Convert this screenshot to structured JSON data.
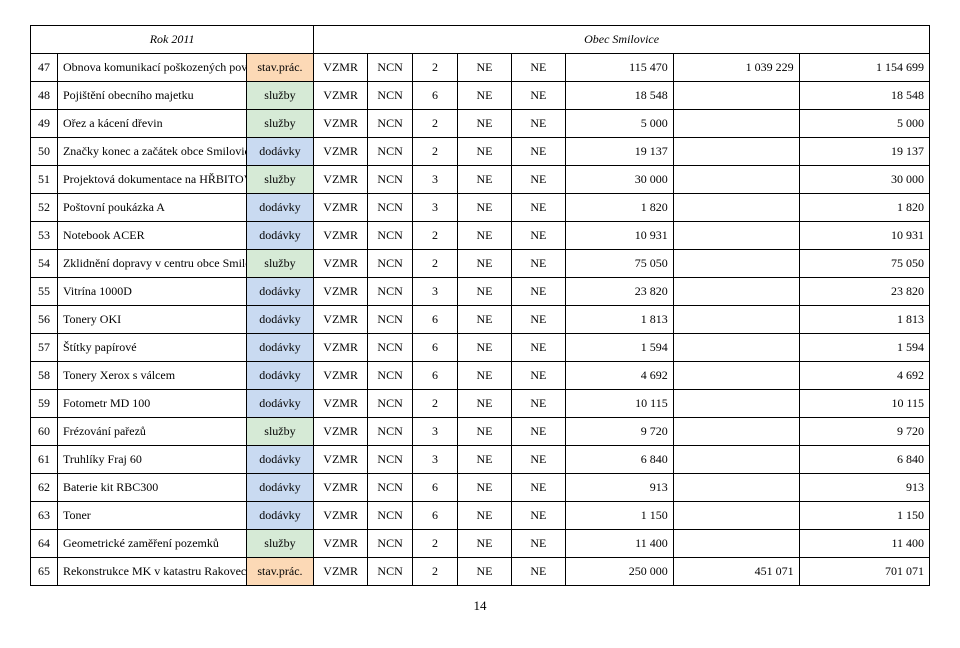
{
  "header": {
    "year": "Rok 2011",
    "obec": "Obec Smilovice"
  },
  "categoryColors": {
    "stav.prác.": "cat-stav",
    "služby": "cat-sluz",
    "dodávky": "cat-doda"
  },
  "columns": {
    "widths_pct": [
      3.0,
      21.0,
      7.5,
      6.0,
      5.0,
      5.0,
      6.0,
      6.0,
      12.0,
      14.0,
      14.5
    ]
  },
  "rows": [
    {
      "n": "47",
      "desc": "Obnova komunikací poškozených povodní",
      "cat": "stav.prác.",
      "a": "VZMR",
      "b": "NCN",
      "c": "2",
      "d": "NE",
      "e": "NE",
      "f": "115 470",
      "g": "1 039 229",
      "h": "1 154 699"
    },
    {
      "n": "48",
      "desc": "Pojištění obecního majetku",
      "cat": "služby",
      "a": "VZMR",
      "b": "NCN",
      "c": "6",
      "d": "NE",
      "e": "NE",
      "f": "18 548",
      "g": "",
      "h": "18 548"
    },
    {
      "n": "49",
      "desc": "Ořez a kácení dřevin",
      "cat": "služby",
      "a": "VZMR",
      "b": "NCN",
      "c": "2",
      "d": "NE",
      "e": "NE",
      "f": "5 000",
      "g": "",
      "h": "5 000"
    },
    {
      "n": "50",
      "desc": "Značky konec a začátek obce Smilovice",
      "cat": "dodávky",
      "a": "VZMR",
      "b": "NCN",
      "c": "2",
      "d": "NE",
      "e": "NE",
      "f": "19 137",
      "g": "",
      "h": "19 137"
    },
    {
      "n": "51",
      "desc": "Projektová dokumentace na HŘBITOV",
      "cat": "služby",
      "a": "VZMR",
      "b": "NCN",
      "c": "3",
      "d": "NE",
      "e": "NE",
      "f": "30 000",
      "g": "",
      "h": "30 000"
    },
    {
      "n": "52",
      "desc": "Poštovní poukázka A",
      "cat": "dodávky",
      "a": "VZMR",
      "b": "NCN",
      "c": "3",
      "d": "NE",
      "e": "NE",
      "f": "1 820",
      "g": "",
      "h": "1 820"
    },
    {
      "n": "53",
      "desc": "Notebook ACER",
      "cat": "dodávky",
      "a": "VZMR",
      "b": "NCN",
      "c": "2",
      "d": "NE",
      "e": "NE",
      "f": "10 931",
      "g": "",
      "h": "10 931"
    },
    {
      "n": "54",
      "desc": "Zklidnění dopravy v centru obce Smilovice",
      "cat": "služby",
      "a": "VZMR",
      "b": "NCN",
      "c": "2",
      "d": "NE",
      "e": "NE",
      "f": "75 050",
      "g": "",
      "h": "75 050"
    },
    {
      "n": "55",
      "desc": "Vitrína 1000D",
      "cat": "dodávky",
      "a": "VZMR",
      "b": "NCN",
      "c": "3",
      "d": "NE",
      "e": "NE",
      "f": "23 820",
      "g": "",
      "h": "23 820"
    },
    {
      "n": "56",
      "desc": "Tonery OKI",
      "cat": "dodávky",
      "a": "VZMR",
      "b": "NCN",
      "c": "6",
      "d": "NE",
      "e": "NE",
      "f": "1 813",
      "g": "",
      "h": "1 813"
    },
    {
      "n": "57",
      "desc": "Štítky papírové",
      "cat": "dodávky",
      "a": "VZMR",
      "b": "NCN",
      "c": "6",
      "d": "NE",
      "e": "NE",
      "f": "1 594",
      "g": "",
      "h": "1 594"
    },
    {
      "n": "58",
      "desc": "Tonery Xerox s válcem",
      "cat": "dodávky",
      "a": "VZMR",
      "b": "NCN",
      "c": "6",
      "d": "NE",
      "e": "NE",
      "f": "4 692",
      "g": "",
      "h": "4 692"
    },
    {
      "n": "59",
      "desc": "Fotometr MD 100",
      "cat": "dodávky",
      "a": "VZMR",
      "b": "NCN",
      "c": "2",
      "d": "NE",
      "e": "NE",
      "f": "10 115",
      "g": "",
      "h": "10 115"
    },
    {
      "n": "60",
      "desc": "Frézování pařezů",
      "cat": "služby",
      "a": "VZMR",
      "b": "NCN",
      "c": "3",
      "d": "NE",
      "e": "NE",
      "f": "9 720",
      "g": "",
      "h": "9 720"
    },
    {
      "n": "61",
      "desc": "Truhlíky Fraj 60",
      "cat": "dodávky",
      "a": "VZMR",
      "b": "NCN",
      "c": "3",
      "d": "NE",
      "e": "NE",
      "f": "6 840",
      "g": "",
      "h": "6 840"
    },
    {
      "n": "62",
      "desc": "Baterie kit RBC300",
      "cat": "dodávky",
      "a": "VZMR",
      "b": "NCN",
      "c": "6",
      "d": "NE",
      "e": "NE",
      "f": "913",
      "g": "",
      "h": "913"
    },
    {
      "n": "63",
      "desc": "Toner",
      "cat": "dodávky",
      "a": "VZMR",
      "b": "NCN",
      "c": "6",
      "d": "NE",
      "e": "NE",
      "f": "1 150",
      "g": "",
      "h": "1 150"
    },
    {
      "n": "64",
      "desc": "Geometrické zaměření pozemků",
      "cat": "služby",
      "a": "VZMR",
      "b": "NCN",
      "c": "2",
      "d": "NE",
      "e": "NE",
      "f": "11 400",
      "g": "",
      "h": "11 400"
    },
    {
      "n": "65",
      "desc": "Rekonstrukce MK v katastru Rakovec",
      "cat": "stav.prác.",
      "a": "VZMR",
      "b": "NCN",
      "c": "2",
      "d": "NE",
      "e": "NE",
      "f": "250 000",
      "g": "451 071",
      "h": "701 071"
    }
  ],
  "pageNumber": "14"
}
